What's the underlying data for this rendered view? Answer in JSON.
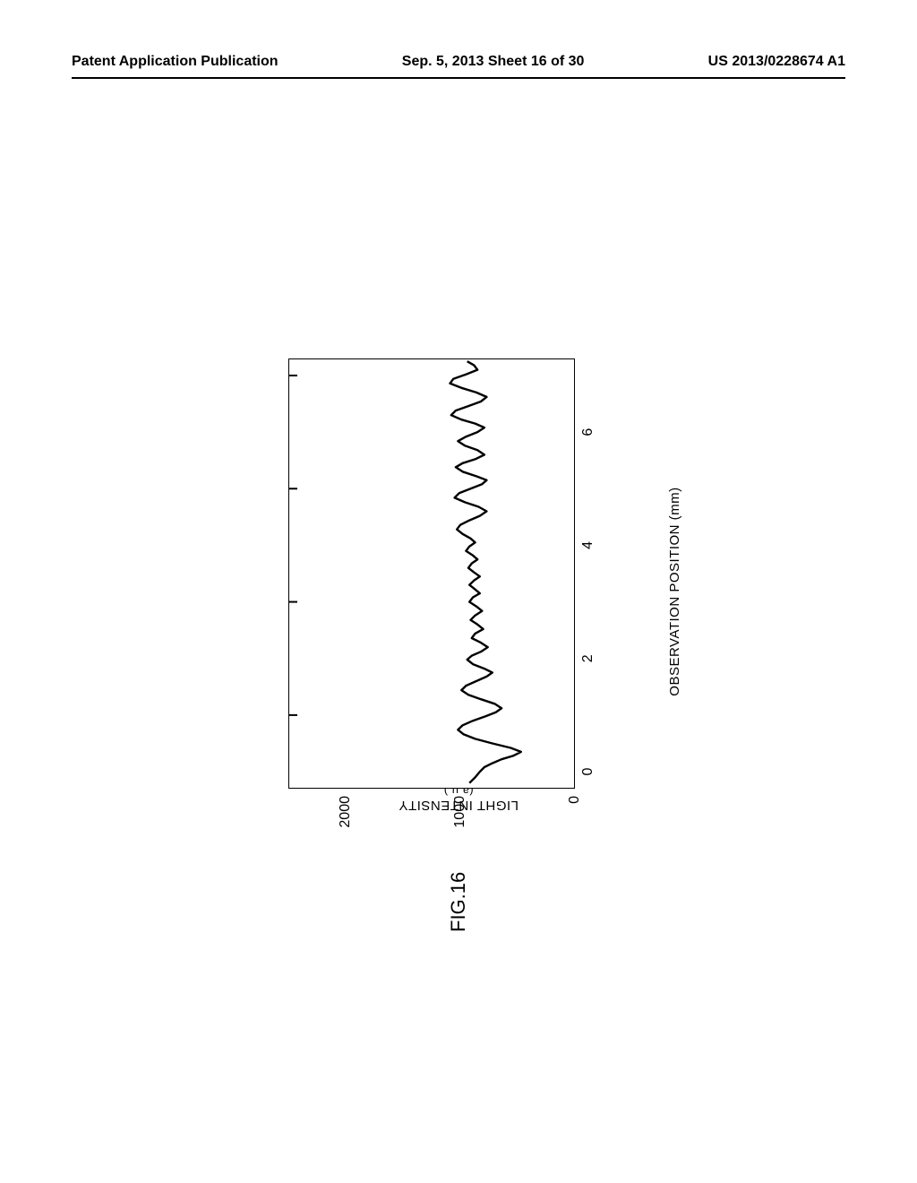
{
  "header": {
    "left": "Patent Application Publication",
    "center": "Sep. 5, 2013  Sheet 16 of 30",
    "right": "US 2013/0228674 A1"
  },
  "figure": {
    "label": "FIG.16",
    "y_axis": {
      "label_line1": "LIGHT",
      "label_line2": "INTENSITY",
      "unit": "(a.u.)"
    },
    "x_axis": {
      "label": "OBSERVATION POSITION (mm)"
    },
    "chart": {
      "type": "line",
      "xlim": [
        -0.3,
        7.3
      ],
      "ylim": [
        0,
        2500
      ],
      "x_ticks": [
        0,
        2,
        4,
        6
      ],
      "y_ticks": [
        0,
        1000,
        2000
      ],
      "y_tick_labels": [
        "0",
        "1000",
        "2000"
      ],
      "x_tick_labels": [
        "0",
        "2",
        "4",
        "6"
      ],
      "x_major_tick_top": [
        1,
        3,
        5,
        7
      ],
      "line_color": "#000000",
      "line_width": 2.4,
      "axis_color": "#000000",
      "axis_width": 2,
      "background_color": "#ffffff",
      "data": [
        [
          -0.2,
          920
        ],
        [
          -0.1,
          870
        ],
        [
          0.0,
          830
        ],
        [
          0.08,
          790
        ],
        [
          0.15,
          720
        ],
        [
          0.22,
          640
        ],
        [
          0.28,
          540
        ],
        [
          0.35,
          470
        ],
        [
          0.42,
          560
        ],
        [
          0.5,
          720
        ],
        [
          0.58,
          870
        ],
        [
          0.66,
          970
        ],
        [
          0.74,
          1020
        ],
        [
          0.82,
          980
        ],
        [
          0.9,
          890
        ],
        [
          0.98,
          780
        ],
        [
          1.05,
          690
        ],
        [
          1.12,
          640
        ],
        [
          1.2,
          700
        ],
        [
          1.28,
          820
        ],
        [
          1.36,
          930
        ],
        [
          1.44,
          990
        ],
        [
          1.52,
          950
        ],
        [
          1.6,
          860
        ],
        [
          1.68,
          770
        ],
        [
          1.75,
          720
        ],
        [
          1.82,
          790
        ],
        [
          1.9,
          890
        ],
        [
          1.98,
          940
        ],
        [
          2.05,
          900
        ],
        [
          2.12,
          820
        ],
        [
          2.2,
          760
        ],
        [
          2.28,
          820
        ],
        [
          2.36,
          900
        ],
        [
          2.44,
          870
        ],
        [
          2.52,
          800
        ],
        [
          2.6,
          850
        ],
        [
          2.68,
          910
        ],
        [
          2.76,
          870
        ],
        [
          2.84,
          810
        ],
        [
          2.92,
          860
        ],
        [
          3.0,
          920
        ],
        [
          3.08,
          890
        ],
        [
          3.15,
          830
        ],
        [
          3.22,
          870
        ],
        [
          3.3,
          920
        ],
        [
          3.38,
          880
        ],
        [
          3.45,
          830
        ],
        [
          3.52,
          880
        ],
        [
          3.6,
          930
        ],
        [
          3.68,
          900
        ],
        [
          3.75,
          850
        ],
        [
          3.82,
          890
        ],
        [
          3.9,
          950
        ],
        [
          3.98,
          920
        ],
        [
          4.05,
          870
        ],
        [
          4.12,
          910
        ],
        [
          4.2,
          980
        ],
        [
          4.28,
          1030
        ],
        [
          4.36,
          1000
        ],
        [
          4.44,
          920
        ],
        [
          4.52,
          830
        ],
        [
          4.6,
          770
        ],
        [
          4.68,
          840
        ],
        [
          4.76,
          960
        ],
        [
          4.84,
          1050
        ],
        [
          4.92,
          1010
        ],
        [
          5.0,
          910
        ],
        [
          5.08,
          810
        ],
        [
          5.15,
          770
        ],
        [
          5.22,
          860
        ],
        [
          5.3,
          980
        ],
        [
          5.38,
          1040
        ],
        [
          5.45,
          980
        ],
        [
          5.52,
          870
        ],
        [
          5.6,
          790
        ],
        [
          5.68,
          850
        ],
        [
          5.76,
          960
        ],
        [
          5.84,
          1020
        ],
        [
          5.92,
          950
        ],
        [
          6.0,
          850
        ],
        [
          6.08,
          790
        ],
        [
          6.15,
          870
        ],
        [
          6.22,
          990
        ],
        [
          6.3,
          1080
        ],
        [
          6.38,
          1040
        ],
        [
          6.46,
          930
        ],
        [
          6.54,
          820
        ],
        [
          6.62,
          770
        ],
        [
          6.7,
          860
        ],
        [
          6.78,
          990
        ],
        [
          6.86,
          1090
        ],
        [
          6.94,
          1060
        ],
        [
          7.02,
          950
        ],
        [
          7.1,
          850
        ],
        [
          7.18,
          880
        ],
        [
          7.25,
          940
        ]
      ]
    }
  }
}
